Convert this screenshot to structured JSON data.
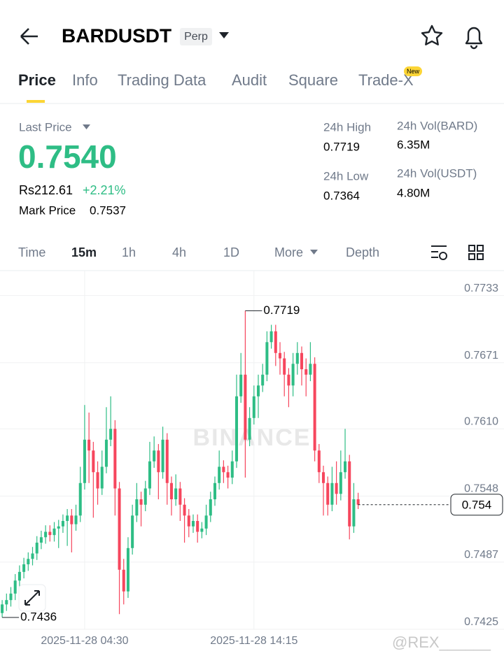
{
  "header": {
    "title": "BARDUSDT",
    "badge": "Perp"
  },
  "tabs": [
    "Price",
    "Info",
    "Trading Data",
    "Audit",
    "Square",
    "Trade-X"
  ],
  "new_badge": "New",
  "stats": {
    "last_price_label": "Last Price",
    "last_price": "0.7540",
    "local_price": "Rs212.61",
    "change": "+2.21%",
    "mark_price_label": "Mark Price",
    "mark_price": "0.7537",
    "high_label": "24h High",
    "high": "0.7719",
    "low_label": "24h Low",
    "low": "0.7364",
    "vol_base_label": "24h Vol(BARD)",
    "vol_base": "6.35M",
    "vol_quote_label": "24h Vol(USDT)",
    "vol_quote": "4.80M"
  },
  "intervals": [
    "Time",
    "15m",
    "1h",
    "4h",
    "1D",
    "More",
    "Depth"
  ],
  "chart_data": {
    "type": "candlestick",
    "up_color": "#2ebd85",
    "down_color": "#f6465d",
    "grid": true,
    "ylim": [
      0.7425,
      0.7756
    ],
    "yticks": [
      0.7733,
      0.7671,
      {
        "value": 0.761,
        "label": "0.7610"
      },
      0.7548,
      0.7487,
      0.7425
    ],
    "xlim": [
      -0.5,
      115.6
    ],
    "xticks": [
      {
        "value": 19,
        "label": "2025-11-28 04:30"
      },
      {
        "value": 58,
        "label": "2025-11-28 14:15"
      }
    ],
    "candles": [
      [
        0.744,
        0.7452,
        0.7436,
        0.7448
      ],
      [
        0.7448,
        0.7458,
        0.7442,
        0.7452
      ],
      [
        0.7452,
        0.7464,
        0.7446,
        0.7458
      ],
      [
        0.7458,
        0.7476,
        0.7452,
        0.747
      ],
      [
        0.747,
        0.7484,
        0.7464,
        0.7478
      ],
      [
        0.7478,
        0.7491,
        0.7472,
        0.7485
      ],
      [
        0.7485,
        0.7496,
        0.7479,
        0.749
      ],
      [
        0.749,
        0.7501,
        0.7484,
        0.7495
      ],
      [
        0.7495,
        0.7511,
        0.7489,
        0.7505
      ],
      [
        0.7505,
        0.7516,
        0.7499,
        0.751
      ],
      [
        0.751,
        0.7521,
        0.7504,
        0.7515
      ],
      [
        0.7515,
        0.7521,
        0.7506,
        0.7512
      ],
      [
        0.7512,
        0.7524,
        0.7506,
        0.7518
      ],
      [
        0.7518,
        0.7526,
        0.75,
        0.752
      ],
      [
        0.752,
        0.7531,
        0.7514,
        0.7525
      ],
      [
        0.7525,
        0.7536,
        0.7502,
        0.753
      ],
      [
        0.753,
        0.7536,
        0.7496,
        0.7522
      ],
      [
        0.7522,
        0.754,
        0.7516,
        0.753
      ],
      [
        0.753,
        0.7575,
        0.7524,
        0.756
      ],
      [
        0.756,
        0.7632,
        0.7554,
        0.76
      ],
      [
        0.76,
        0.7625,
        0.756,
        0.759
      ],
      [
        0.759,
        0.7598,
        0.7528,
        0.757
      ],
      [
        0.757,
        0.758,
        0.754,
        0.7555
      ],
      [
        0.7555,
        0.759,
        0.7549,
        0.7575
      ],
      [
        0.7575,
        0.763,
        0.7569,
        0.76
      ],
      [
        0.76,
        0.764,
        0.7594,
        0.761
      ],
      [
        0.761,
        0.7618,
        0.753,
        0.7555
      ],
      [
        0.7555,
        0.7561,
        0.7439,
        0.748
      ],
      [
        0.748,
        0.749,
        0.7448,
        0.746
      ],
      [
        0.746,
        0.751,
        0.7454,
        0.75
      ],
      [
        0.75,
        0.754,
        0.7494,
        0.753
      ],
      [
        0.753,
        0.756,
        0.7524,
        0.7545
      ],
      [
        0.7545,
        0.7552,
        0.752,
        0.754
      ],
      [
        0.754,
        0.7562,
        0.7534,
        0.7555
      ],
      [
        0.7555,
        0.7598,
        0.7549,
        0.758
      ],
      [
        0.758,
        0.7603,
        0.7574,
        0.759
      ],
      [
        0.759,
        0.7596,
        0.7545,
        0.757
      ],
      [
        0.757,
        0.7612,
        0.7564,
        0.76
      ],
      [
        0.76,
        0.7606,
        0.754,
        0.756
      ],
      [
        0.756,
        0.7566,
        0.753,
        0.7545
      ],
      [
        0.7545,
        0.7568,
        0.7539,
        0.7555
      ],
      [
        0.7555,
        0.7561,
        0.7525,
        0.754
      ],
      [
        0.754,
        0.7546,
        0.7505,
        0.753
      ],
      [
        0.753,
        0.7536,
        0.751,
        0.752
      ],
      [
        0.752,
        0.7531,
        0.7514,
        0.7525
      ],
      [
        0.7525,
        0.7531,
        0.7505,
        0.7515
      ],
      [
        0.7515,
        0.7524,
        0.7509,
        0.7518
      ],
      [
        0.7518,
        0.754,
        0.7512,
        0.753
      ],
      [
        0.753,
        0.7552,
        0.7524,
        0.7545
      ],
      [
        0.7545,
        0.7566,
        0.7539,
        0.756
      ],
      [
        0.756,
        0.759,
        0.7554,
        0.7575
      ],
      [
        0.7575,
        0.7581,
        0.756,
        0.757
      ],
      [
        0.757,
        0.7576,
        0.7555,
        0.7565
      ],
      [
        0.7565,
        0.759,
        0.7559,
        0.758
      ],
      [
        0.758,
        0.766,
        0.7574,
        0.764
      ],
      [
        0.764,
        0.768,
        0.7634,
        0.766
      ],
      [
        0.766,
        0.7719,
        0.7565,
        0.76
      ],
      [
        0.76,
        0.763,
        0.7594,
        0.762
      ],
      [
        0.762,
        0.765,
        0.7614,
        0.764
      ],
      [
        0.764,
        0.766,
        0.762,
        0.765
      ],
      [
        0.765,
        0.767,
        0.7644,
        0.766
      ],
      [
        0.766,
        0.77,
        0.7654,
        0.769
      ],
      [
        0.769,
        0.7706,
        0.7684,
        0.77
      ],
      [
        0.77,
        0.7706,
        0.7668,
        0.768
      ],
      [
        0.768,
        0.769,
        0.766,
        0.7675
      ],
      [
        0.7675,
        0.7681,
        0.764,
        0.766
      ],
      [
        0.766,
        0.7666,
        0.763,
        0.765
      ],
      [
        0.765,
        0.768,
        0.764,
        0.767
      ],
      [
        0.767,
        0.769,
        0.766,
        0.768
      ],
      [
        0.768,
        0.7686,
        0.765,
        0.7665
      ],
      [
        0.7665,
        0.7675,
        0.764,
        0.766
      ],
      [
        0.766,
        0.769,
        0.7654,
        0.767
      ],
      [
        0.767,
        0.7676,
        0.758,
        0.759
      ],
      [
        0.759,
        0.7596,
        0.756,
        0.757
      ],
      [
        0.757,
        0.7576,
        0.753,
        0.756
      ],
      [
        0.756,
        0.7566,
        0.753,
        0.754
      ],
      [
        0.754,
        0.7575,
        0.7534,
        0.756
      ],
      [
        0.756,
        0.758,
        0.754,
        0.755
      ],
      [
        0.755,
        0.759,
        0.7544,
        0.757
      ],
      [
        0.757,
        0.761,
        0.7564,
        0.758
      ],
      [
        0.758,
        0.7586,
        0.7508,
        0.752
      ],
      [
        0.752,
        0.756,
        0.7514,
        0.7545
      ],
      [
        0.7545,
        0.7551,
        0.7536,
        0.754
      ]
    ],
    "watermark": "BINANCE",
    "credit": "@REX______"
  }
}
